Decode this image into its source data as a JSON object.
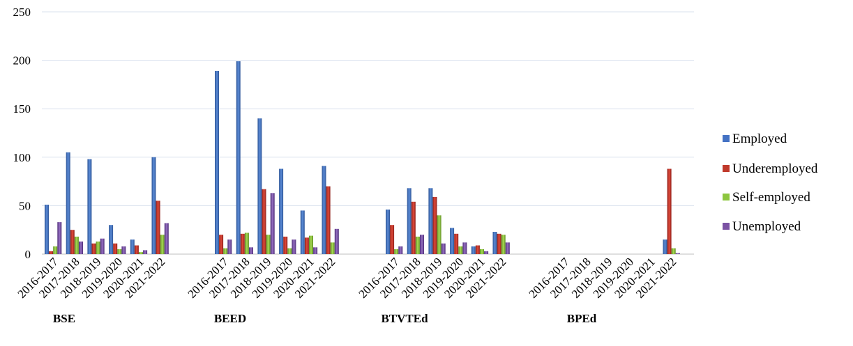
{
  "chart_data": {
    "type": "bar",
    "title": "",
    "xlabel": "",
    "ylabel": "",
    "ylim": [
      0,
      250
    ],
    "yticks": [
      0,
      50,
      100,
      150,
      200,
      250
    ],
    "grid": true,
    "legend_position": "right",
    "groups": [
      {
        "name": "BSE",
        "categories": [
          "2016-2017",
          "2017-2018",
          "2018-2019",
          "2019-2020",
          "2020-2021",
          "2021-2022"
        ],
        "series": [
          {
            "name": "Employed",
            "values": [
              51,
              105,
              98,
              30,
              15,
              100
            ]
          },
          {
            "name": "Underemployed",
            "values": [
              3,
              25,
              11,
              11,
              9,
              55
            ]
          },
          {
            "name": "Self-employed",
            "values": [
              8,
              18,
              13,
              5,
              2,
              20
            ]
          },
          {
            "name": "Unemployed",
            "values": [
              33,
              13,
              16,
              8,
              4,
              32
            ]
          }
        ]
      },
      {
        "name": "BEED",
        "categories": [
          "2016-2017",
          "2017-2018",
          "2018-2019",
          "2019-2020",
          "2020-2021",
          "2021-2022"
        ],
        "series": [
          {
            "name": "Employed",
            "values": [
              189,
              199,
              140,
              88,
              45,
              91
            ]
          },
          {
            "name": "Underemployed",
            "values": [
              20,
              21,
              67,
              18,
              17,
              70
            ]
          },
          {
            "name": "Self-employed",
            "values": [
              6,
              22,
              20,
              6,
              19,
              12
            ]
          },
          {
            "name": "Unemployed",
            "values": [
              15,
              7,
              63,
              15,
              7,
              26
            ]
          }
        ]
      },
      {
        "name": "BTVTEd",
        "categories": [
          "2016-2017",
          "2017-2018",
          "2018-2019",
          "2019-2020",
          "2020-2021",
          "2021-2022"
        ],
        "series": [
          {
            "name": "Employed",
            "values": [
              46,
              68,
              68,
              27,
              8,
              23
            ]
          },
          {
            "name": "Underemployed",
            "values": [
              30,
              54,
              59,
              21,
              9,
              21
            ]
          },
          {
            "name": "Self-employed",
            "values": [
              5,
              18,
              40,
              8,
              5,
              20
            ]
          },
          {
            "name": "Unemployed",
            "values": [
              8,
              20,
              11,
              12,
              3,
              12
            ]
          }
        ]
      },
      {
        "name": "BPEd",
        "categories": [
          "2016-2017",
          "2017-2018",
          "2018-2019",
          "2019-2020",
          "2020-2021",
          "2021-2022"
        ],
        "series": [
          {
            "name": "Employed",
            "values": [
              0,
              0,
              0,
              0,
              0,
              15
            ]
          },
          {
            "name": "Underemployed",
            "values": [
              0,
              0,
              0,
              0,
              0,
              88
            ]
          },
          {
            "name": "Self-employed",
            "values": [
              0,
              0,
              0,
              0,
              0,
              6
            ]
          },
          {
            "name": "Unemployed",
            "values": [
              0,
              0,
              0,
              0,
              0,
              1
            ]
          }
        ]
      }
    ],
    "legend": [
      {
        "name": "Employed",
        "color": "#4472C4"
      },
      {
        "name": "Underemployed",
        "color": "#C0392B"
      },
      {
        "name": "Self-employed",
        "color": "#8DC63F"
      },
      {
        "name": "Unemployed",
        "color": "#7B52A3"
      }
    ]
  }
}
